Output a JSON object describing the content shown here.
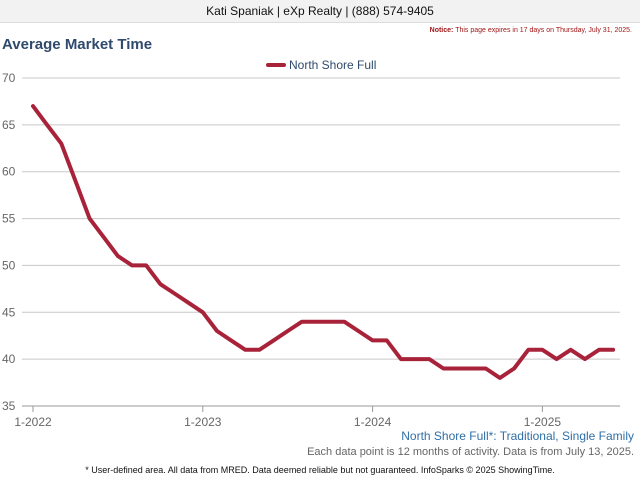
{
  "header": {
    "agent_line": "Kati Spaniak | eXp Realty | (888) 574-9405"
  },
  "notice": {
    "label": "Notice:",
    "text": "This page expires in 17 days on Thursday, July 31, 2025."
  },
  "colors": {
    "series": "#a8233a",
    "title": "#2f4a6d",
    "notice": "#a01717",
    "area_note": "#2f6fa6"
  },
  "chart_data": {
    "type": "line",
    "title": "Average Market Time",
    "xlabel": "",
    "ylabel": "",
    "ylim": [
      35,
      70
    ],
    "y_ticks": [
      35,
      40,
      45,
      50,
      55,
      60,
      65,
      70
    ],
    "x_ticks": [
      "1-2022",
      "1-2023",
      "1-2024",
      "1-2025"
    ],
    "grid": true,
    "legend_position": "top-center",
    "x": [
      "1-2022",
      "2-2022",
      "3-2022",
      "4-2022",
      "5-2022",
      "6-2022",
      "7-2022",
      "8-2022",
      "9-2022",
      "10-2022",
      "11-2022",
      "12-2022",
      "1-2023",
      "2-2023",
      "3-2023",
      "4-2023",
      "5-2023",
      "6-2023",
      "7-2023",
      "8-2023",
      "9-2023",
      "10-2023",
      "11-2023",
      "12-2023",
      "1-2024",
      "2-2024",
      "3-2024",
      "4-2024",
      "5-2024",
      "6-2024",
      "7-2024",
      "8-2024",
      "9-2024",
      "10-2024",
      "11-2024",
      "12-2024",
      "1-2025",
      "2-2025",
      "3-2025",
      "4-2025",
      "5-2025",
      "6-2025"
    ],
    "series": [
      {
        "name": "North Shore Full",
        "values": [
          67,
          65,
          63,
          59,
          55,
          53,
          51,
          50,
          50,
          48,
          47,
          46,
          45,
          43,
          42,
          41,
          41,
          42,
          43,
          44,
          44,
          44,
          44,
          43,
          42,
          42,
          40,
          40,
          40,
          39,
          39,
          39,
          39,
          38,
          39,
          41,
          41,
          40,
          41,
          40,
          41,
          41
        ]
      }
    ]
  },
  "footer": {
    "area_note": "North Shore Full*: Traditional, Single Family",
    "data_note": "Each data point is 12 months of activity. Data is from July 13, 2025.",
    "disclaimer": "* User-defined area. All data from MRED. Data deemed reliable but not guaranteed. InfoSparks © 2025 ShowingTime."
  }
}
